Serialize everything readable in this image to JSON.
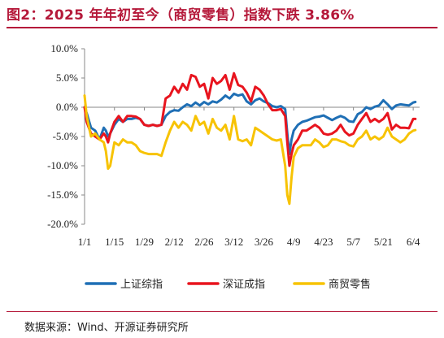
{
  "header": {
    "title": "图2：2025 年年初至今（商贸零售）指数下跌 3.86%"
  },
  "footer": {
    "source": "数据来源：Wind、开源证券研究所"
  },
  "chart_data": {
    "type": "line",
    "title": "",
    "xlabel": "",
    "ylabel": "",
    "ylim": [
      -20,
      10
    ],
    "yticks": [
      10,
      5,
      0,
      -5,
      -10,
      -15,
      -20
    ],
    "ytick_labels": [
      "10.0%",
      "5.0%",
      "0.0%",
      "-5.0%",
      "-10.0%",
      "-15.0%",
      "-20.0%"
    ],
    "x_tick_labels": [
      "1/1",
      "1/15",
      "1/29",
      "2/12",
      "2/26",
      "3/12",
      "3/26",
      "4/9",
      "4/23",
      "5/7",
      "5/21",
      "6/4"
    ],
    "x_range_days": [
      0,
      157
    ],
    "grid": false,
    "legend_position": "bottom",
    "series": [
      {
        "name": "上证综指",
        "color": "#1f6fb5",
        "x": [
          0,
          1,
          3,
          5,
          7,
          9,
          10,
          11,
          12,
          14,
          16,
          18,
          20,
          22,
          24,
          26,
          28,
          30,
          32,
          34,
          36,
          38,
          40,
          42,
          44,
          46,
          48,
          50,
          52,
          54,
          56,
          58,
          60,
          62,
          64,
          66,
          68,
          70,
          72,
          74,
          76,
          78,
          80,
          82,
          84,
          86,
          88,
          90,
          92,
          94,
          95,
          96,
          97,
          98,
          100,
          102,
          104,
          106,
          108,
          110,
          112,
          114,
          116,
          118,
          120,
          122,
          124,
          126,
          128,
          130,
          132,
          134,
          136,
          138,
          140,
          142,
          144,
          146,
          148,
          150,
          152,
          154,
          155
        ],
        "y": [
          0.0,
          -1.0,
          -3.5,
          -4.0,
          -5.5,
          -3.5,
          -4.0,
          -5.0,
          -4.5,
          -3.0,
          -2.0,
          -2.5,
          -2.0,
          -2.0,
          -1.8,
          -2.0,
          -3.0,
          -3.2,
          -3.0,
          -3.2,
          -3.0,
          -1.5,
          -0.8,
          -0.5,
          -0.6,
          0.0,
          0.5,
          0.2,
          0.8,
          0.3,
          0.9,
          0.5,
          1.0,
          0.8,
          1.3,
          2.0,
          1.5,
          2.3,
          2.0,
          2.2,
          1.0,
          0.5,
          1.2,
          1.5,
          1.0,
          0.7,
          0.2,
          0.0,
          0.2,
          -0.3,
          -4.5,
          -8.0,
          -5.5,
          -4.0,
          -3.0,
          -2.5,
          -2.3,
          -2.0,
          -1.7,
          -1.6,
          -1.4,
          -1.8,
          -2.2,
          -1.8,
          -1.5,
          -1.8,
          -2.4,
          -2.5,
          -1.2,
          -0.8,
          0.0,
          -0.3,
          0.1,
          0.3,
          1.2,
          0.5,
          -0.3,
          0.3,
          0.5,
          0.4,
          0.3,
          0.8,
          0.9
        ]
      },
      {
        "name": "深证成指",
        "color": "#e8141e",
        "x": [
          0,
          1,
          3,
          5,
          7,
          9,
          10,
          11,
          12,
          14,
          16,
          18,
          20,
          22,
          24,
          26,
          28,
          30,
          32,
          34,
          36,
          38,
          40,
          42,
          44,
          46,
          48,
          50,
          52,
          54,
          56,
          58,
          60,
          62,
          64,
          66,
          68,
          70,
          72,
          74,
          76,
          78,
          80,
          82,
          84,
          86,
          88,
          90,
          92,
          94,
          95,
          96,
          97,
          98,
          100,
          102,
          104,
          106,
          108,
          110,
          112,
          114,
          116,
          118,
          120,
          122,
          124,
          126,
          128,
          130,
          132,
          134,
          136,
          138,
          140,
          142,
          144,
          146,
          148,
          150,
          152,
          154,
          155
        ],
        "y": [
          0.0,
          -2.5,
          -4.5,
          -5.0,
          -5.5,
          -4.5,
          -5.0,
          -6.0,
          -4.5,
          -2.5,
          -1.5,
          -2.5,
          -1.5,
          -1.5,
          -1.6,
          -2.0,
          -3.0,
          -3.2,
          -3.0,
          -3.2,
          -3.0,
          1.5,
          2.0,
          3.5,
          2.5,
          4.0,
          3.0,
          5.5,
          5.2,
          3.5,
          4.0,
          1.5,
          5.0,
          4.0,
          4.5,
          5.5,
          3.0,
          5.8,
          3.8,
          3.5,
          2.5,
          1.0,
          3.5,
          3.0,
          2.0,
          0.5,
          -0.5,
          -0.5,
          -0.3,
          -1.5,
          -6.0,
          -10.0,
          -8.0,
          -6.5,
          -5.5,
          -4.0,
          -4.0,
          -3.5,
          -3.0,
          -3.5,
          -4.5,
          -4.7,
          -4.5,
          -4.0,
          -3.0,
          -4.2,
          -4.8,
          -4.5,
          -3.0,
          -2.0,
          -1.0,
          -2.5,
          -2.0,
          -2.5,
          -2.0,
          -1.0,
          -3.8,
          -3.0,
          -3.5,
          -3.5,
          -3.6,
          -2.0,
          -2.0
        ]
      },
      {
        "name": "商贸零售",
        "color": "#f7c304",
        "x": [
          0,
          1,
          3,
          5,
          7,
          9,
          10,
          11,
          12,
          14,
          16,
          18,
          20,
          22,
          24,
          26,
          28,
          30,
          32,
          34,
          36,
          38,
          40,
          42,
          44,
          46,
          48,
          50,
          52,
          54,
          56,
          58,
          60,
          62,
          64,
          66,
          68,
          70,
          72,
          74,
          76,
          78,
          80,
          82,
          84,
          86,
          88,
          90,
          92,
          94,
          95,
          96,
          97,
          98,
          100,
          102,
          104,
          106,
          108,
          110,
          112,
          114,
          116,
          118,
          120,
          122,
          124,
          126,
          128,
          130,
          132,
          134,
          136,
          138,
          140,
          142,
          144,
          146,
          148,
          150,
          152,
          154,
          155
        ],
        "y": [
          2.0,
          -1.5,
          -5.0,
          -4.5,
          -5.5,
          -6.0,
          -7.5,
          -10.5,
          -10.0,
          -6.0,
          -6.5,
          -5.5,
          -6.0,
          -6.0,
          -6.5,
          -7.5,
          -7.8,
          -8.0,
          -8.0,
          -8.0,
          -8.3,
          -6.0,
          -4.0,
          -2.5,
          -3.5,
          -2.5,
          -3.0,
          -4.0,
          -1.5,
          -3.0,
          -2.5,
          -4.5,
          -2.0,
          -3.5,
          -4.0,
          -3.0,
          -5.5,
          -1.5,
          -5.5,
          -5.8,
          -5.5,
          -6.5,
          -3.5,
          -4.0,
          -4.5,
          -5.0,
          -5.5,
          -5.7,
          -5.5,
          -10.0,
          -15.0,
          -16.5,
          -12.0,
          -8.5,
          -7.0,
          -6.5,
          -6.5,
          -6.5,
          -5.5,
          -6.0,
          -6.8,
          -6.5,
          -5.5,
          -5.5,
          -5.8,
          -6.0,
          -6.5,
          -6.7,
          -5.5,
          -5.0,
          -4.0,
          -5.5,
          -5.0,
          -5.5,
          -5.0,
          -3.5,
          -5.0,
          -5.5,
          -6.0,
          -5.5,
          -4.5,
          -4.0,
          -3.9
        ]
      }
    ]
  }
}
